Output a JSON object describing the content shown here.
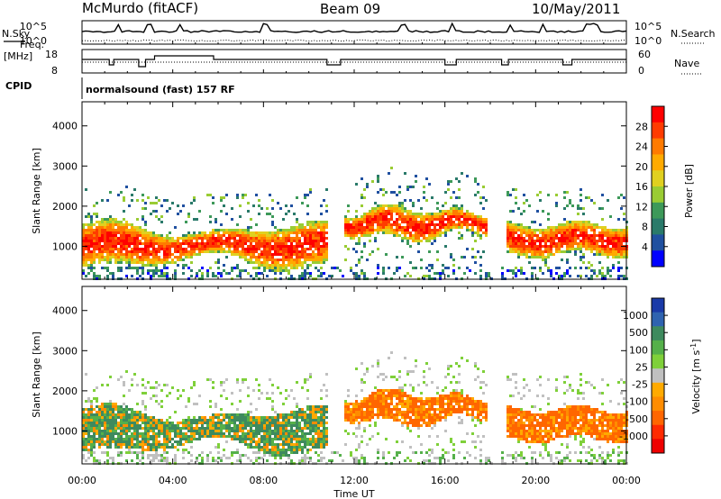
{
  "header": {
    "title": "McMurdo (fitACF)",
    "beam": "Beam 09",
    "date": "10/May/2011"
  },
  "strip_labels": {
    "nsky": "N.Sky",
    "nsearch": "N.Search",
    "freq": "Freq.",
    "freq_unit": "[MHz]",
    "nave": "Nave",
    "cpid": "CPID",
    "cpid_value": "normalsound (fast) 157 RF",
    "noise_ticks_left": [
      "10^5",
      "10^0"
    ],
    "noise_ticks_right": [
      "10^5",
      "10^0"
    ],
    "freq_ticks": [
      "18",
      "8"
    ],
    "nave_ticks": [
      "60",
      "0"
    ]
  },
  "chart_data": [
    {
      "type": "heatmap",
      "name": "power",
      "ylabel": "Slant Range [km]",
      "ylim": [
        180,
        4600
      ],
      "yticks": [
        "1000",
        "2000",
        "3000",
        "4000"
      ],
      "xticks": [
        "00:00",
        "04:00",
        "08:00",
        "12:00",
        "16:00",
        "20:00",
        "00:00"
      ],
      "colorbar": {
        "label": "Power [dB]",
        "ticks": [
          "28",
          "24",
          "20",
          "16",
          "12",
          "8",
          "4"
        ],
        "colors": [
          "#ff0000",
          "#ff3b00",
          "#ff7a00",
          "#ffaa00",
          "#e0d020",
          "#9acc33",
          "#3d9959",
          "#2a7a6a",
          "#2050a0",
          "#0000ff"
        ]
      }
    },
    {
      "type": "heatmap",
      "name": "velocity",
      "ylabel": "Slant Range [km]",
      "ylim": [
        180,
        4600
      ],
      "yticks": [
        "1000",
        "2000",
        "3000",
        "4000"
      ],
      "xticks": [
        "00:00",
        "04:00",
        "08:00",
        "12:00",
        "16:00",
        "20:00",
        "00:00"
      ],
      "xlabel": "Time UT",
      "colorbar": {
        "label": "Velocity [m s^-1]",
        "ticks": [
          "1000",
          "500",
          "100",
          "25",
          "-25",
          "-100",
          "-500",
          "-1000"
        ],
        "colors": [
          "#1a3aa8",
          "#2f63b0",
          "#3e8a5e",
          "#55b04a",
          "#7fd03a",
          "#c0c0c0",
          "#ffaa00",
          "#ff8c00",
          "#ff6600",
          "#ff2a00",
          "#ee0000"
        ]
      }
    }
  ]
}
